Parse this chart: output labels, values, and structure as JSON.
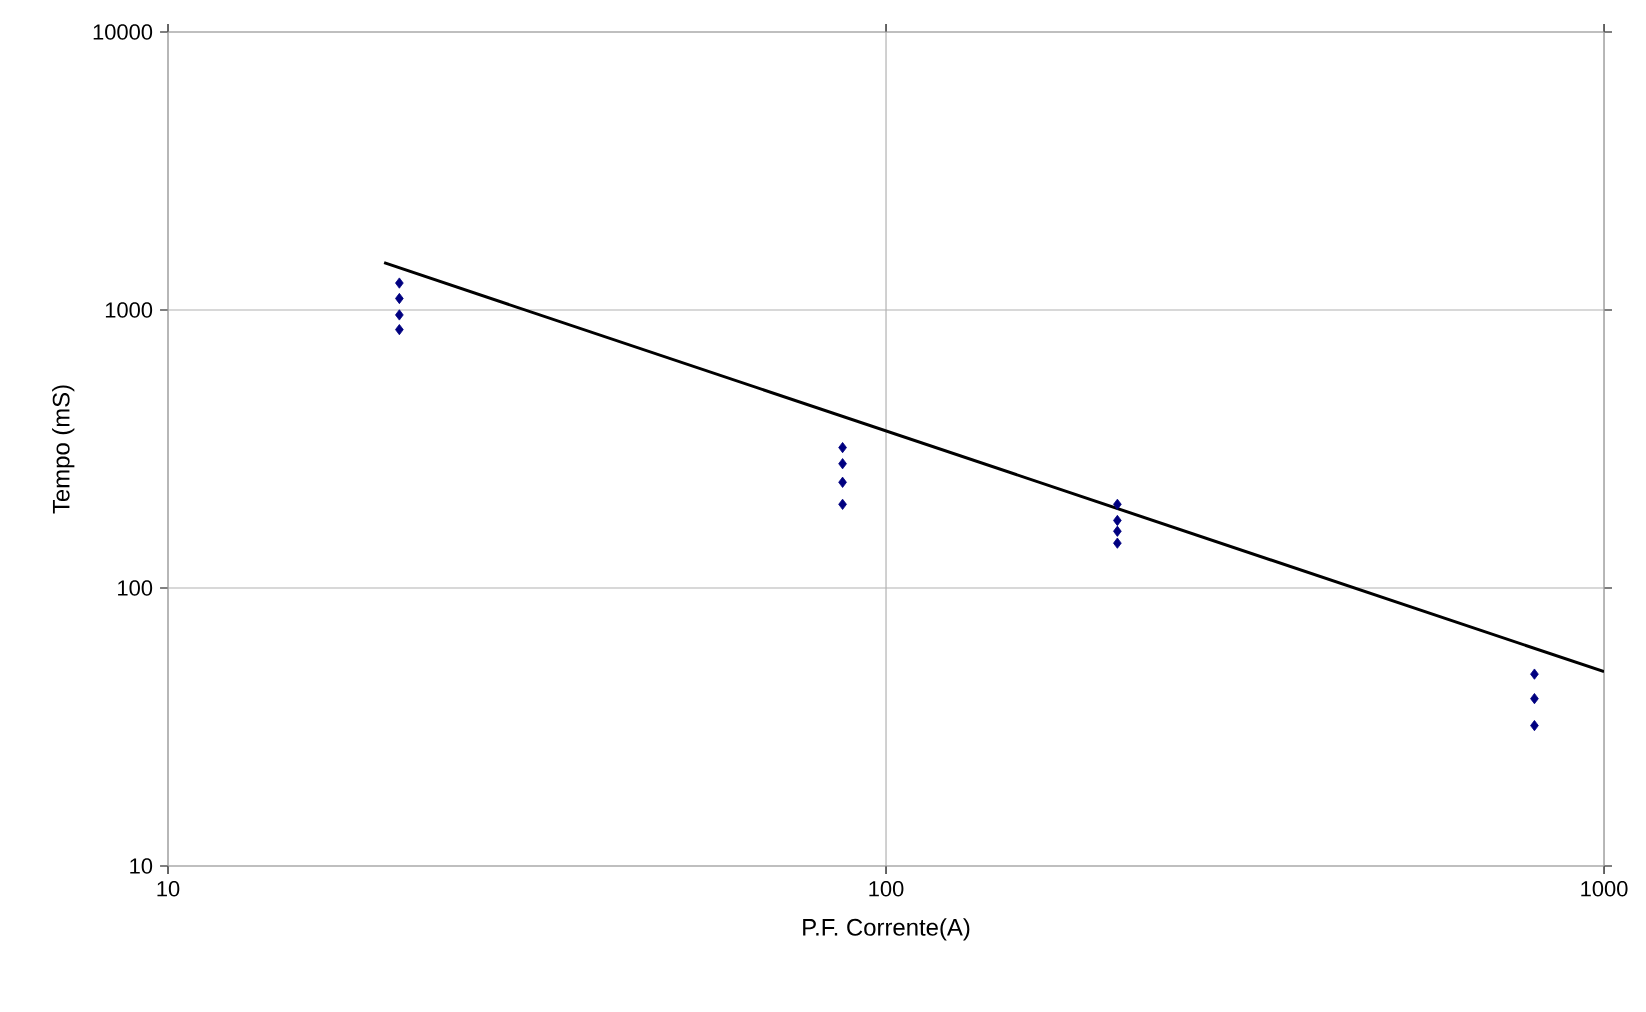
{
  "chart_data": {
    "type": "scatter",
    "xlabel": "P.F. Corrente(A)",
    "ylabel": "Tempo (mS)",
    "log": "xy",
    "grid": true,
    "marker": "diamond",
    "xlim": [
      10,
      1000
    ],
    "xticks": [
      10,
      100,
      1000
    ],
    "ylim": [
      10,
      10000
    ],
    "yticks": [
      10,
      100,
      1000,
      10000
    ],
    "series": [
      {
        "color": "#000080",
        "x": [
          21,
          21,
          21,
          21,
          87,
          87,
          87,
          87,
          210,
          210,
          210,
          210,
          800,
          800,
          800
        ],
        "values": [
          1250,
          1100,
          960,
          850,
          320,
          280,
          240,
          200,
          200,
          175,
          160,
          145,
          49,
          40,
          32
        ]
      },
      {
        "type": "line",
        "color": "#000000",
        "marker": "none",
        "x": [
          20,
          1000
        ],
        "values": [
          1480,
          50
        ]
      }
    ]
  }
}
